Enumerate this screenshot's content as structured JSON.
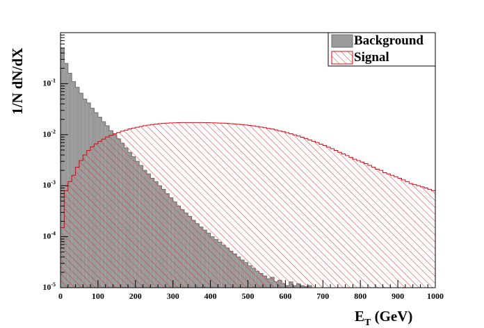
{
  "chart_data": {
    "type": "histogram",
    "xlabel": {
      "base": "E",
      "subscript": "T",
      "unit": " (GeV)"
    },
    "ylabel": "1/N dN/dX",
    "xlim": [
      0,
      1000
    ],
    "ylim": [
      1e-05,
      1
    ],
    "ylog": true,
    "bin_width": 10,
    "x_ticks": [
      "0",
      "100",
      "200",
      "300",
      "400",
      "500",
      "600",
      "700",
      "800",
      "900",
      "1000"
    ],
    "y_ticks": [
      {
        "base": "10",
        "exp": "-5"
      },
      {
        "base": "10",
        "exp": "-4"
      },
      {
        "base": "10",
        "exp": "-3"
      },
      {
        "base": "10",
        "exp": "-2"
      },
      {
        "base": "10",
        "exp": "-1"
      }
    ],
    "legend": {
      "position": "top-right",
      "entries": [
        "Background",
        "Signal"
      ]
    },
    "colors": {
      "background_fill": "#9a9a9a",
      "background_line": "#6e6e6e",
      "signal_line": "#e8000b",
      "signal_hatch": "#d23030"
    },
    "series": [
      {
        "name": "Background",
        "style": "filled-gray",
        "values": [
          0.5,
          0.25,
          0.16,
          0.11,
          0.085,
          0.065,
          0.05,
          0.042,
          0.033,
          0.027,
          0.022,
          0.018,
          0.015,
          0.012,
          0.01,
          0.0083,
          0.0068,
          0.0055,
          0.0045,
          0.0037,
          0.003,
          0.0025,
          0.002,
          0.0017,
          0.0014,
          0.0012,
          0.001,
          0.00085,
          0.0007,
          0.00058,
          0.00048,
          0.0004,
          0.00034,
          0.00029,
          0.00025,
          0.00021,
          0.00018,
          0.000155,
          0.000135,
          0.000118,
          0.0001,
          8.8e-05,
          7.8e-05,
          6.8e-05,
          6e-05,
          5.2e-05,
          4.6e-05,
          4e-05,
          3.5e-05,
          3.1e-05,
          2.7e-05,
          2.4e-05,
          2.1e-05,
          1.9e-05,
          1.7e-05,
          1.5e-05,
          1.6e-05,
          1.3e-05,
          1.4e-05,
          1.2e-05,
          1.1e-05,
          1.3e-05,
          1.1e-05,
          1.2e-05,
          1.1e-05,
          1.05e-05,
          1.1e-05,
          0,
          0,
          0,
          0,
          0,
          0,
          0,
          0,
          0,
          0,
          0,
          0,
          0,
          0,
          0,
          0,
          0,
          0,
          0,
          0,
          0,
          0,
          0,
          0,
          0,
          0,
          0,
          0,
          0,
          0,
          0,
          0,
          0
        ]
      },
      {
        "name": "Signal",
        "style": "hatched-red",
        "values": [
          0.00015,
          0.0008,
          0.0012,
          0.0016,
          0.0023,
          0.0031,
          0.004,
          0.0049,
          0.0058,
          0.0066,
          0.0074,
          0.0082,
          0.009,
          0.0097,
          0.0104,
          0.011,
          0.0117,
          0.0123,
          0.0129,
          0.0135,
          0.014,
          0.0145,
          0.015,
          0.0154,
          0.0158,
          0.0161,
          0.0164,
          0.0166,
          0.0168,
          0.017,
          0.0171,
          0.0172,
          0.0173,
          0.0173,
          0.0173,
          0.0173,
          0.0173,
          0.0173,
          0.0172,
          0.0172,
          0.0171,
          0.017,
          0.0169,
          0.0168,
          0.0166,
          0.0164,
          0.0162,
          0.016,
          0.0157,
          0.0155,
          0.0152,
          0.0149,
          0.0145,
          0.0141,
          0.0137,
          0.0133,
          0.0129,
          0.0124,
          0.0119,
          0.0114,
          0.0109,
          0.0104,
          0.0099,
          0.0094,
          0.0089,
          0.0084,
          0.0079,
          0.0074,
          0.007,
          0.0065,
          0.0061,
          0.0057,
          0.0053,
          0.0049,
          0.0045,
          0.0042,
          0.0039,
          0.0036,
          0.0033,
          0.0031,
          0.0029,
          0.0027,
          0.0025,
          0.0023,
          0.0021,
          0.002,
          0.0018,
          0.0017,
          0.0016,
          0.0015,
          0.0014,
          0.0013,
          0.0012,
          0.0011,
          0.00105,
          0.001,
          0.00095,
          0.0009,
          0.00085,
          0.0008
        ]
      }
    ]
  }
}
